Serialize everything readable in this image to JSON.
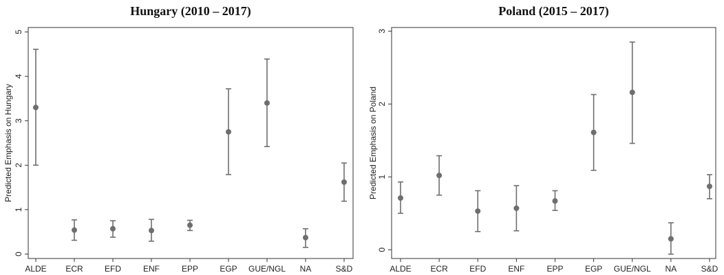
{
  "chart_data": [
    {
      "type": "scatter",
      "title": "Hungary (2010 – 2017)",
      "xlabel": "",
      "ylabel": "Predicted Emphasis on Hungary",
      "categories": [
        "ALDE",
        "ECR",
        "EFD",
        "ENF",
        "EPP",
        "EGP",
        "GUE/NGL",
        "NA",
        "S&D"
      ],
      "values": [
        3.3,
        0.54,
        0.57,
        0.53,
        0.65,
        2.75,
        3.4,
        0.37,
        1.62
      ],
      "ci_low": [
        2.0,
        0.31,
        0.38,
        0.29,
        0.53,
        1.79,
        2.42,
        0.15,
        1.19
      ],
      "ci_high": [
        4.61,
        0.77,
        0.75,
        0.78,
        0.76,
        3.72,
        4.39,
        0.57,
        2.05
      ],
      "ylim": [
        -0.1,
        5.1
      ],
      "yticks": [
        0,
        1,
        2,
        3,
        4,
        5
      ],
      "grid": false,
      "marker_color": "#6e6e6e"
    },
    {
      "type": "scatter",
      "title": "Poland (2015 – 2017)",
      "xlabel": "",
      "ylabel": "Predicted Emphasis on Poland",
      "categories": [
        "ALDE",
        "ECR",
        "EFD",
        "ENF",
        "EPP",
        "EGP",
        "GUE/NGL",
        "NA",
        "S&D"
      ],
      "values": [
        0.71,
        1.02,
        0.53,
        0.57,
        0.67,
        1.61,
        2.16,
        0.15,
        0.87
      ],
      "ci_low": [
        0.5,
        0.75,
        0.25,
        0.26,
        0.54,
        1.09,
        1.46,
        -0.06,
        0.7
      ],
      "ci_high": [
        0.93,
        1.29,
        0.81,
        0.88,
        0.81,
        2.13,
        2.85,
        0.37,
        1.03
      ],
      "ylim": [
        -0.12,
        3.05
      ],
      "yticks": [
        0,
        1,
        2,
        3
      ],
      "grid": false,
      "marker_color": "#6e6e6e"
    }
  ]
}
